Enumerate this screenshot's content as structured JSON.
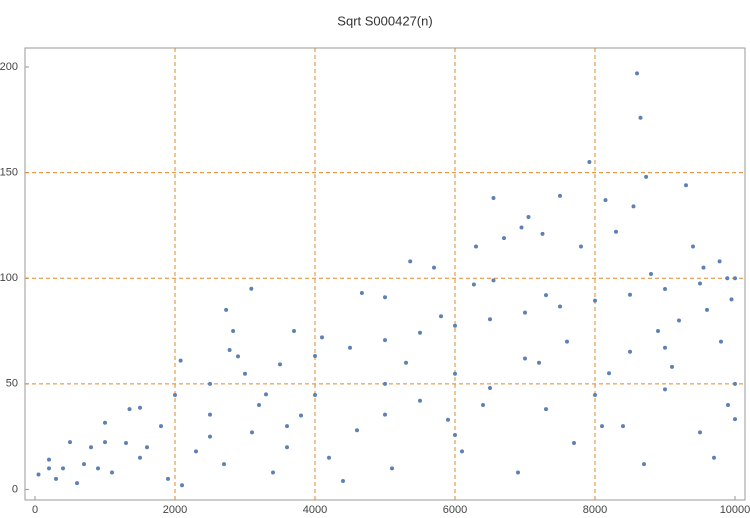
{
  "chart_data": {
    "type": "scatter",
    "title": "Sqrt S000427(n)",
    "color": "#5e81b5",
    "grid_color": "#e08a2a",
    "grid": true,
    "xlim": [
      -143,
      10143
    ],
    "ylim": [
      -5,
      209
    ],
    "xticks": [
      0,
      2000,
      4000,
      6000,
      8000,
      10000
    ],
    "yticks": [
      0,
      50,
      100,
      150,
      200
    ],
    "x": [
      50,
      200,
      500,
      1000,
      1500,
      2000,
      2500,
      3000,
      3500,
      4000,
      4500,
      5000,
      5500,
      6000,
      6500,
      7000,
      7500,
      8000,
      8500,
      9000,
      9500,
      10000,
      200,
      800,
      1800,
      3200,
      5000,
      7200,
      9800,
      1000,
      2500,
      4000,
      6000,
      8500,
      9000,
      400,
      1600,
      3600,
      6400,
      10000,
      2500,
      5000,
      8000,
      9000,
      900,
      3600,
      8100,
      10000,
      6000,
      2730,
      2780,
      2830,
      3090,
      2900,
      3700,
      4670,
      5000,
      5360,
      5700,
      6300,
      6550,
      6700,
      6950,
      7050,
      7250,
      7500,
      7800,
      7920,
      8150,
      8300,
      8600,
      8650,
      8730,
      8550,
      9300,
      9400,
      8800,
      9550,
      9780,
      9890,
      6270,
      6550,
      7300,
      2080,
      1350,
      4100,
      5800,
      300,
      700,
      1100,
      1500,
      1900,
      2300,
      2700,
      3100,
      3400,
      3800,
      4200,
      4600,
      5100,
      5500,
      6100,
      6500,
      6900,
      7300,
      7700,
      8200,
      8700,
      9100,
      9500,
      9900,
      600,
      1300,
      2100,
      4400,
      5900,
      7000,
      8400,
      9700,
      3300,
      9200,
      9600,
      8900,
      9950,
      5300,
      7600
    ],
    "values": [
      7.1,
      14.1,
      22.4,
      31.6,
      38.7,
      44.7,
      50,
      54.8,
      59.2,
      63.2,
      67.1,
      70.7,
      74.2,
      77.5,
      80.6,
      83.7,
      86.6,
      89.4,
      92.2,
      94.9,
      97.5,
      100,
      10,
      20,
      30,
      40,
      50,
      60,
      70,
      22.4,
      35.4,
      44.7,
      54.8,
      65.2,
      67.1,
      10,
      20,
      30,
      40,
      50,
      25,
      35.4,
      44.7,
      47.4,
      10,
      20,
      30,
      33.3,
      25.8,
      85,
      66,
      75,
      95,
      63,
      75,
      93,
      91,
      108,
      105,
      115,
      138,
      119,
      124,
      129,
      121,
      139,
      115,
      155,
      137,
      122,
      197,
      176,
      148,
      134,
      144,
      115,
      102,
      105,
      108,
      100,
      97,
      99,
      92,
      61,
      38,
      72,
      82,
      5,
      12,
      8,
      15,
      5,
      18,
      12,
      27,
      8,
      35,
      15,
      28,
      10,
      42,
      18,
      48,
      8,
      38,
      22,
      55,
      12,
      58,
      27,
      40,
      3,
      22,
      2,
      4,
      33,
      62,
      30,
      15,
      45,
      80,
      85,
      75,
      90,
      60,
      70
    ]
  }
}
